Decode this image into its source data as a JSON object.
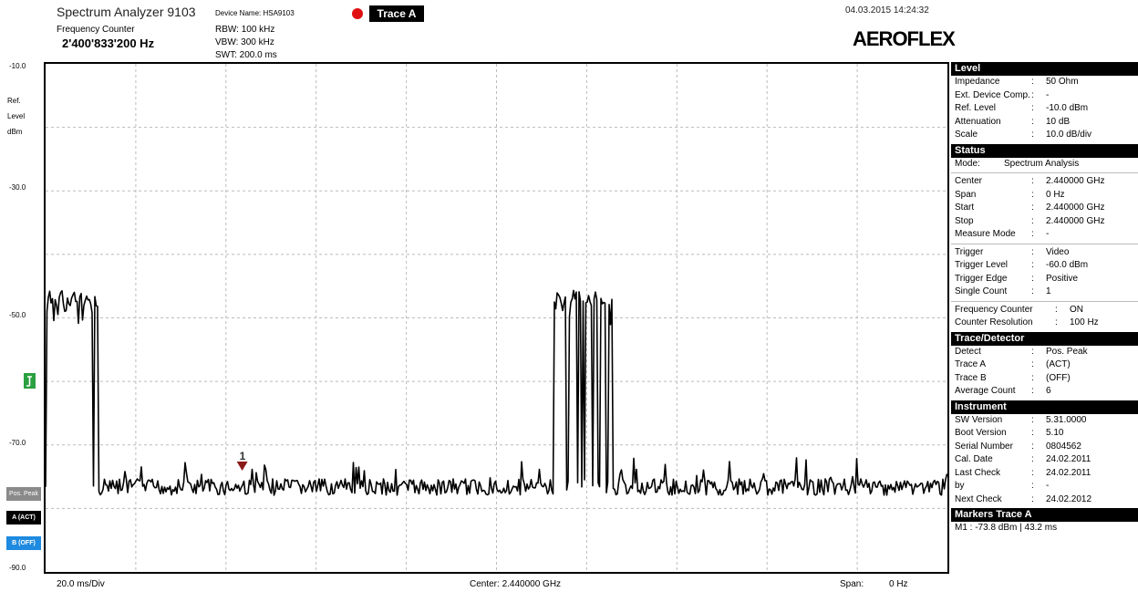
{
  "header": {
    "title": "Spectrum Analyzer 9103",
    "device_name": "Device Name: HSA9103",
    "freq_counter_label": "Frequency Counter",
    "freq_counter_value": "2'400'833'200 Hz",
    "rbw": "RBW:  100 kHz",
    "vbw": "VBW:  300 kHz",
    "swt": "SWT:  200.0 ms",
    "trace_button": "Trace A",
    "datetime": "04.03.2015  14:24:32",
    "logo": "AEROFLEX"
  },
  "y_axis": {
    "ticks": [
      "-10.0",
      "-30.0",
      "-50.0",
      "-70.0",
      "-90.0"
    ],
    "ref_label": [
      "Ref.",
      "Level",
      "dBm"
    ]
  },
  "left_buttons": {
    "detector": "Pos. Peak",
    "trace_a": "A (ACT)",
    "trace_b": "B (OFF)"
  },
  "footer": {
    "div": "20.0 ms/Div",
    "center": "Center: 2.440000 GHz",
    "span_label": "Span:",
    "span_value": "0 Hz"
  },
  "marker": {
    "label": "1"
  },
  "panel": {
    "level": {
      "title": "Level",
      "rows": [
        {
          "k": "Impedance",
          "c": ":",
          "v": "50 Ohm"
        },
        {
          "k": "Ext. Device Comp.",
          "c": ":",
          "v": "-"
        },
        {
          "k": "Ref. Level",
          "c": ":",
          "v": "-10.0 dBm"
        },
        {
          "k": "Attenuation",
          "c": ":",
          "v": "10 dB"
        },
        {
          "k": "Scale",
          "c": ":",
          "v": "10.0 dB/div"
        }
      ]
    },
    "status": {
      "title": "Status",
      "mode_key": "Mode:",
      "mode_value": "Spectrum Analysis",
      "rows": [
        {
          "k": "Center",
          "c": ":",
          "v": "2.440000 GHz"
        },
        {
          "k": "Span",
          "c": ":",
          "v": "0 Hz"
        },
        {
          "k": "Start",
          "c": ":",
          "v": "2.440000 GHz"
        },
        {
          "k": "Stop",
          "c": ":",
          "v": "2.440000 GHz"
        },
        {
          "k": "Measure Mode",
          "c": ":",
          "v": "-"
        }
      ],
      "trigger_rows": [
        {
          "k": "Trigger",
          "c": ":",
          "v": "Video"
        },
        {
          "k": "Trigger Level",
          "c": ":",
          "v": "-60.0 dBm"
        },
        {
          "k": "Trigger Edge",
          "c": ":",
          "v": "Positive"
        },
        {
          "k": "Single Count",
          "c": ":",
          "v": "1"
        }
      ],
      "counter_rows": [
        {
          "k": "Frequency Counter",
          "c": ":",
          "v": "ON"
        },
        {
          "k": "Counter Resolution",
          "c": ":",
          "v": "100 Hz"
        }
      ]
    },
    "trace": {
      "title": "Trace/Detector",
      "rows": [
        {
          "k": "Detect",
          "c": ":",
          "v": "Pos. Peak"
        },
        {
          "k": "Trace A",
          "c": ":",
          "v": "(ACT)"
        },
        {
          "k": "Trace B",
          "c": ":",
          "v": "(OFF)"
        },
        {
          "k": "Average Count",
          "c": ":",
          "v": "6"
        }
      ]
    },
    "instrument": {
      "title": "Instrument",
      "rows": [
        {
          "k": "SW Version",
          "c": ":",
          "v": "5.31.0000"
        },
        {
          "k": "Boot Version",
          "c": ":",
          "v": "5.10"
        },
        {
          "k": "Serial Number",
          "c": ":",
          "v": "0804562"
        },
        {
          "k": "Cal. Date",
          "c": ":",
          "v": "24.02.2011"
        },
        {
          "k": "Last Check",
          "c": ":",
          "v": "24.02.2011"
        },
        {
          "k": "by",
          "c": ":",
          "v": "-"
        },
        {
          "k": "Next Check",
          "c": ":",
          "v": "24.02.2012"
        }
      ]
    },
    "markers": {
      "title": "Markers Trace A",
      "m1": "M1   :   -73.8 dBm     |  43.2 ms"
    }
  },
  "colors": {
    "trace": "#000000",
    "marker": "#8b1a1a",
    "trigger": "#2aa040",
    "trace_a_dot": "#e01010",
    "trace_b_button": "#1e8ae0"
  }
}
